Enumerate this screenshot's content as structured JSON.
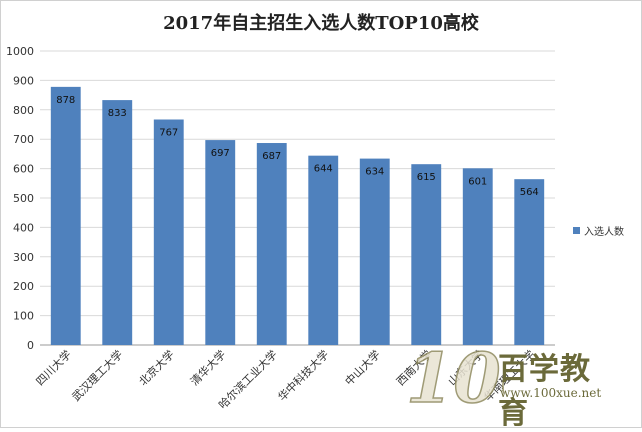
{
  "chart_data": {
    "type": "bar",
    "title": "2017年自主招生入选人数TOP10高校",
    "categories": [
      "四川大学",
      "武汉理工大学",
      "北京大学",
      "清华大学",
      "哈尔滨工业大学",
      "华中科技大学",
      "中山大学",
      "西南大学",
      "山东大学",
      "华南理工大学"
    ],
    "series": [
      {
        "name": "入选人数",
        "values": [
          878,
          833,
          767,
          697,
          687,
          644,
          634,
          615,
          601,
          564
        ]
      }
    ],
    "ylim": [
      0,
      1000
    ],
    "yticks": [
      0,
      100,
      200,
      300,
      400,
      500,
      600,
      700,
      800,
      900,
      1000
    ],
    "grid": true,
    "legend_position": "right",
    "bar_color": "#4f81bd",
    "xlabel": "",
    "ylabel": ""
  },
  "watermark": {
    "brand": "100百学教育",
    "url": "www.100xue.net"
  }
}
